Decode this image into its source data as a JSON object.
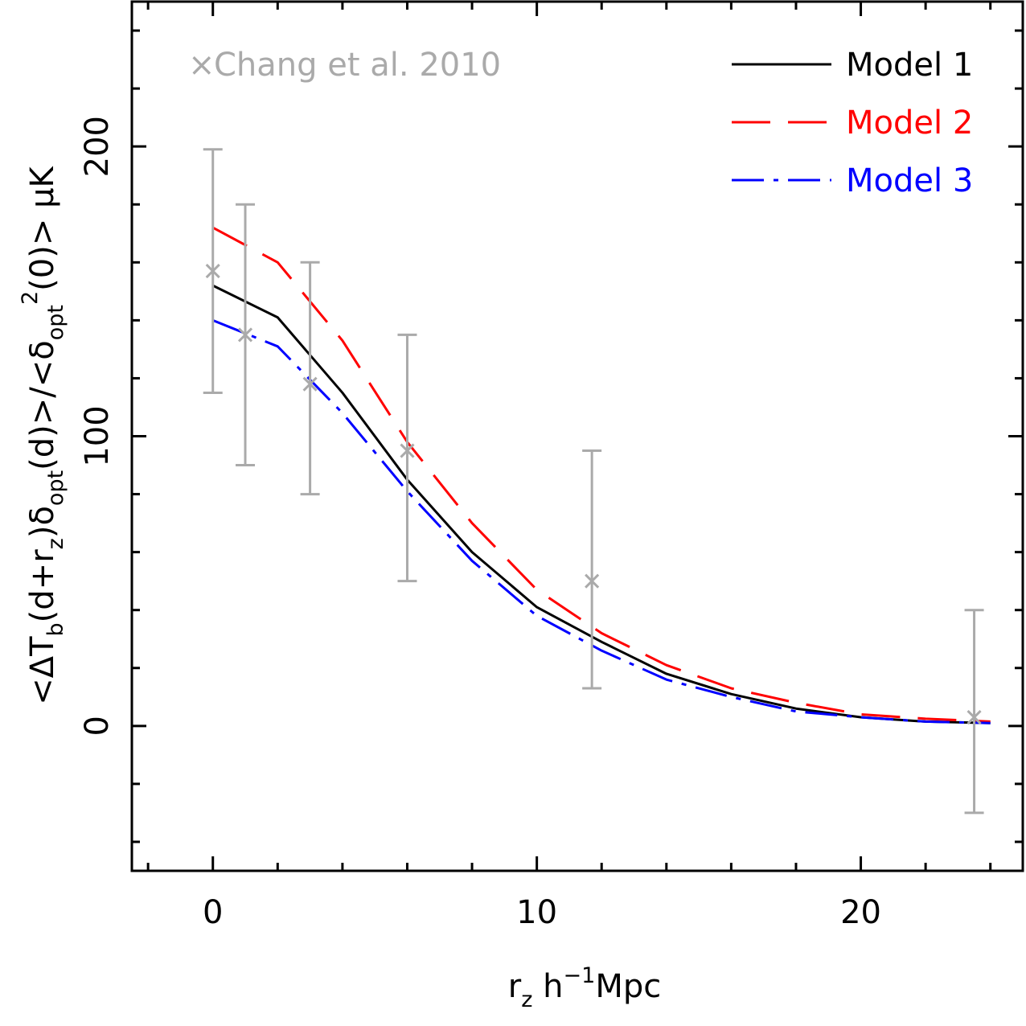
{
  "chart_data": {
    "type": "line",
    "title": "",
    "xlabel": {
      "r": "r",
      "z": "z",
      "h": " h",
      "minus1": "−1",
      "mpc": "Mpc"
    },
    "ylabel": {
      "lt": "<ΔT",
      "b": "b",
      "part1": "(d+r",
      "z": "z",
      "part2": ")δ",
      "opt1": "opt",
      "part3": "(d)>/<δ",
      "opt2": "opt",
      "two": "2",
      "part4": "(0)> μK"
    },
    "xlim": [
      -2.5,
      25
    ],
    "ylim": [
      -50,
      250
    ],
    "x_ticks": [
      0,
      10,
      20
    ],
    "x_tick_labels": [
      "0",
      "10",
      "20"
    ],
    "y_ticks": [
      0,
      100,
      200
    ],
    "y_tick_labels": [
      "0",
      "100",
      "200"
    ],
    "grid": false,
    "legend_position": "top-right",
    "reference": {
      "label": "Chang et al. 2010",
      "marker": "×",
      "color": "#aaaaaa",
      "x": [
        0,
        1,
        3,
        6,
        11.7,
        23.5
      ],
      "y": [
        157,
        135,
        118,
        95,
        50,
        3
      ],
      "err_low": [
        115,
        90,
        80,
        50,
        13,
        -30
      ],
      "err_high": [
        199,
        180,
        160,
        135,
        95,
        40
      ]
    },
    "series": [
      {
        "name": "Model 1",
        "color": "#000000",
        "style": "solid",
        "x": [
          0,
          2,
          4,
          6,
          8,
          10,
          12,
          14,
          16,
          18,
          20,
          22,
          24
        ],
        "y": [
          152,
          141,
          115,
          85,
          60,
          41,
          29,
          18,
          11,
          6,
          3,
          1.5,
          1
        ]
      },
      {
        "name": "Model 2",
        "color": "#ff0000",
        "style": "dashed",
        "x": [
          0,
          2,
          4,
          6,
          8,
          10,
          12,
          14,
          16,
          18,
          20,
          22,
          24
        ],
        "y": [
          172,
          160,
          133,
          98,
          70,
          47,
          32,
          21,
          13,
          8,
          4,
          2.5,
          1.5
        ]
      },
      {
        "name": "Model 3",
        "color": "#0000ff",
        "style": "dash-dot",
        "x": [
          0,
          2,
          4,
          6,
          8,
          10,
          12,
          14,
          16,
          18,
          20,
          22,
          24
        ],
        "y": [
          140,
          131,
          108,
          81,
          57,
          38,
          26,
          16,
          10,
          5,
          3,
          1.5,
          1
        ]
      }
    ]
  }
}
